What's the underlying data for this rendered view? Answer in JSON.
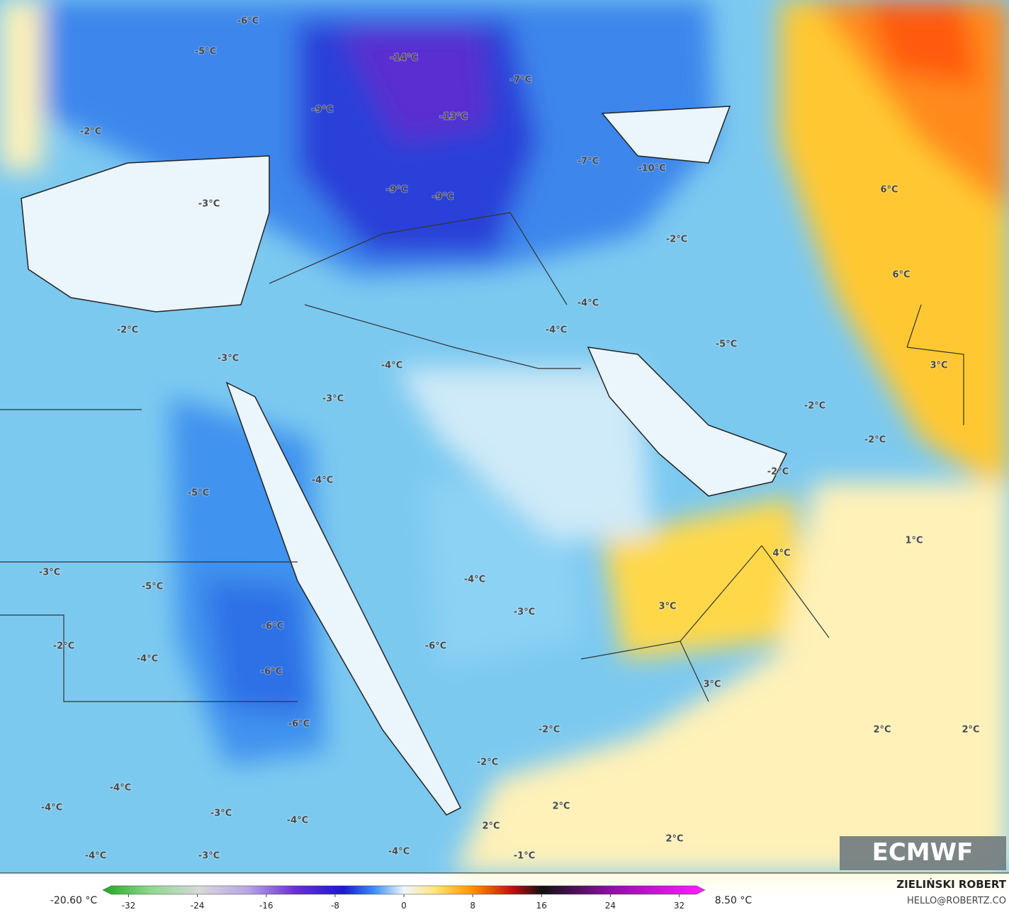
{
  "map": {
    "labels": [
      "-6°C",
      "-5°C",
      "-14°C",
      "-7°C",
      "-9°C",
      "-13°C",
      "-2°C",
      "-7°C",
      "-10°C",
      "-9°C",
      "-9°C",
      "-3°C",
      "6°C",
      "-2°C",
      "6°C",
      "-4°C",
      "-4°C",
      "-2°C",
      "-5°C",
      "-3°C",
      "-4°C",
      "3°C",
      "-3°C",
      "-2°C",
      "-2°C",
      "-2°C",
      "-4°C",
      "-5°C",
      "1°C",
      "4°C",
      "-3°C",
      "-5°C",
      "-4°C",
      "3°C",
      "-3°C",
      "-6°C",
      "-2°C",
      "-4°C",
      "-6°C",
      "-6°C",
      "3°C",
      "-6°C",
      "-2°C",
      "2°C",
      "2°C",
      "-2°C",
      "2°C",
      "-4°C",
      "-4°C",
      "-3°C",
      "-4°C",
      "2°C",
      "2°C",
      "-4°C",
      "-1°C",
      "-4°C",
      "-3°C"
    ],
    "logo": "ECMWF"
  },
  "legend": {
    "min_label": "-20.60 °C",
    "max_label": "8.50 °C",
    "lim": [
      -35,
      35
    ],
    "ticks": [
      -32,
      -24,
      -16,
      -8,
      0,
      8,
      16,
      24,
      32
    ]
  },
  "credit": {
    "author": "ZIELIŃSKI ROBERT",
    "contact": "HELLO@ROBERTZ.CO"
  }
}
